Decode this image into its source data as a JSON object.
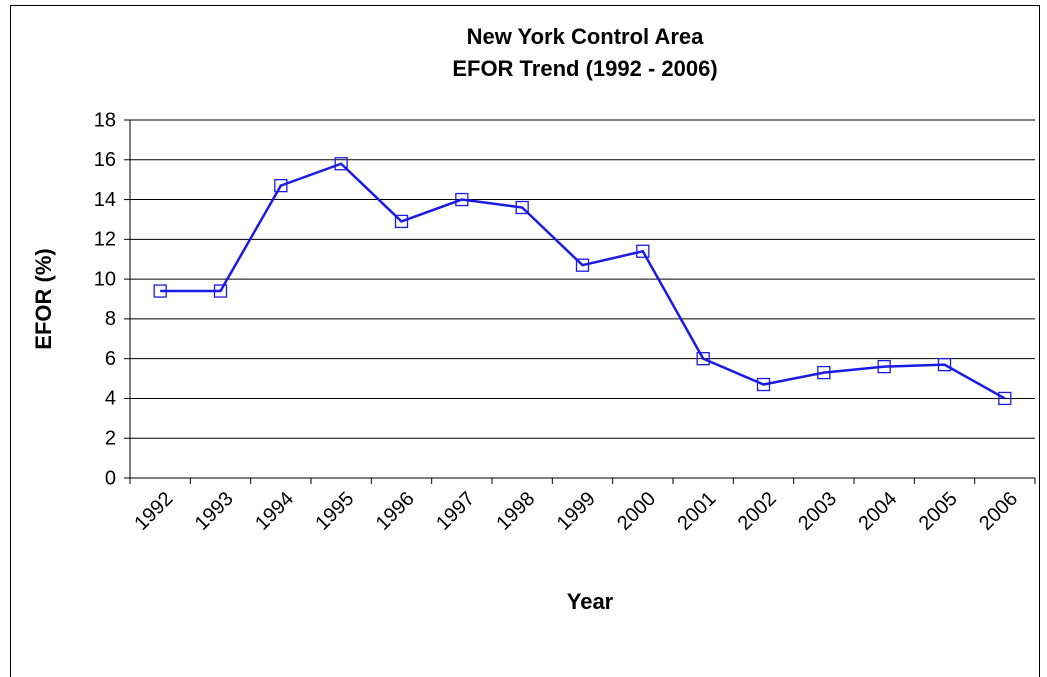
{
  "chart_data": {
    "type": "line",
    "title": [
      "New York Control Area",
      "EFOR Trend (1992 - 2006)"
    ],
    "x_label": "Year",
    "y_label": "EFOR (%)",
    "categories": [
      "1992",
      "1993",
      "1994",
      "1995",
      "1996",
      "1997",
      "1998",
      "1999",
      "2000",
      "2001",
      "2002",
      "2003",
      "2004",
      "2005",
      "2006"
    ],
    "series": [
      {
        "name": "EFOR",
        "color": "#1a1ae6",
        "values": [
          9.4,
          9.4,
          14.7,
          15.8,
          12.9,
          14.0,
          13.6,
          10.7,
          11.4,
          6.0,
          4.7,
          5.3,
          5.6,
          5.7,
          4.0
        ]
      }
    ],
    "ylim": [
      0,
      18
    ],
    "yticks": [
      0,
      2,
      4,
      6,
      8,
      10,
      12,
      14,
      16,
      18
    ],
    "grid": true
  }
}
